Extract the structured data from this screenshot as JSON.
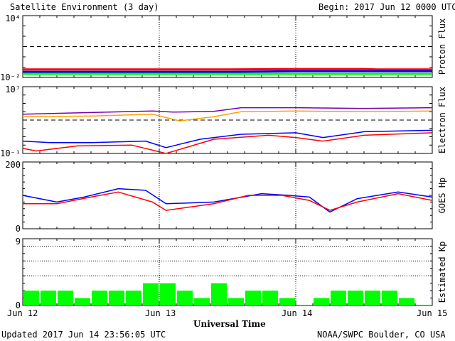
{
  "header": {
    "title": "Satellite Environment (3 day)",
    "begin_label": "Begin:",
    "begin_value": "2017 Jun 12 0000 UTC"
  },
  "footer": {
    "updated": "Updated 2017 Jun 14 23:56:05 UTC",
    "credit": "NOAA/SWPC Boulder, CO USA"
  },
  "colors": {
    "red": "#ff0000",
    "blue": "#0000ff",
    "green": "#00ff00",
    "purple": "#7a00b0",
    "orange": "#ffa000"
  },
  "chart_data": [
    {
      "type": "line",
      "ylabel": "Proton Flux",
      "yscale": "log",
      "ylim": [
        0.01,
        10000
      ],
      "ytick_labels": [
        "10⁴",
        "10⁻²"
      ],
      "threshold": 10,
      "x_range_days": [
        0,
        3
      ],
      "series": [
        {
          "color": "red",
          "x": [
            0,
            0.5,
            1,
            1.5,
            2,
            2.5,
            2.6,
            2.75,
            3
          ],
          "values": [
            0.06,
            0.06,
            0.06,
            0.06,
            0.065,
            0.065,
            0.06,
            0.06,
            0.06
          ]
        },
        {
          "color": "blue",
          "x": [
            0,
            0.5,
            1,
            1.5,
            2,
            2.5,
            2.6,
            2.75,
            3
          ],
          "values": [
            0.035,
            0.035,
            0.035,
            0.035,
            0.04,
            0.04,
            0.04,
            0.04,
            0.04
          ]
        },
        {
          "color": "green",
          "x": [
            0,
            0.5,
            1,
            1.5,
            2,
            2.5,
            2.6,
            2.75,
            3
          ],
          "values": [
            0.022,
            0.022,
            0.022,
            0.022,
            0.022,
            0.022,
            0.022,
            0.022,
            0.022
          ]
        }
      ]
    },
    {
      "type": "line",
      "ylabel": "Electron Flux",
      "yscale": "log",
      "ylim": [
        0.1,
        10000000
      ],
      "ytick_labels": [
        "10⁷",
        "10⁻¹"
      ],
      "threshold": 1000,
      "x_range_days": [
        0,
        3
      ],
      "series": [
        {
          "color": "purple",
          "x": [
            0,
            0.5,
            0.95,
            1.1,
            1.4,
            1.6,
            2.0,
            2.5,
            3
          ],
          "values": [
            5000,
            8000,
            12000,
            9000,
            11000,
            30000,
            30000,
            25000,
            30000
          ]
        },
        {
          "color": "orange",
          "x": [
            0,
            0.5,
            0.95,
            1.15,
            1.4,
            1.6,
            2.0,
            2.5,
            3
          ],
          "values": [
            2500,
            3000,
            5000,
            800,
            2500,
            10000,
            12000,
            10000,
            12000
          ]
        },
        {
          "color": "blue",
          "x": [
            0,
            0.2,
            0.5,
            0.9,
            1.05,
            1.3,
            1.6,
            2.0,
            2.2,
            2.5,
            3
          ],
          "values": [
            3,
            2,
            2,
            3,
            0.5,
            5,
            20,
            30,
            8,
            40,
            60
          ]
        },
        {
          "color": "red",
          "x": [
            0,
            0.1,
            0.4,
            0.8,
            1.05,
            1.4,
            1.8,
            2.0,
            2.2,
            2.5,
            3
          ],
          "values": [
            0.4,
            0.2,
            0.8,
            1,
            0.1,
            5,
            15,
            8,
            3,
            15,
            30
          ]
        }
      ]
    },
    {
      "type": "line",
      "ylabel": "GOES Hp",
      "ylim": [
        0,
        200
      ],
      "ytick_labels": [
        "200",
        "0"
      ],
      "x_range_days": [
        0,
        3
      ],
      "series": [
        {
          "color": "blue",
          "x": [
            0,
            0.25,
            0.45,
            0.7,
            0.9,
            1.05,
            1.4,
            1.75,
            1.95,
            2.1,
            2.25,
            2.45,
            2.75,
            3
          ],
          "values": [
            100,
            80,
            95,
            120,
            115,
            75,
            80,
            105,
            100,
            95,
            50,
            90,
            110,
            95
          ]
        },
        {
          "color": "red",
          "x": [
            0,
            0.25,
            0.5,
            0.7,
            0.95,
            1.05,
            1.4,
            1.65,
            1.9,
            2.1,
            2.25,
            2.45,
            2.75,
            3
          ],
          "values": [
            75,
            75,
            95,
            110,
            80,
            55,
            75,
            100,
            100,
            85,
            55,
            80,
            105,
            85
          ]
        }
      ]
    },
    {
      "type": "bar",
      "ylabel": "Estimated Kp",
      "ylim": [
        0,
        9
      ],
      "ytick_labels": [
        "9",
        "0"
      ],
      "gridlines": [
        4,
        6,
        8
      ],
      "x_range_days": [
        0,
        3
      ],
      "bar_width_days": 0.125,
      "values": [
        2,
        2,
        2,
        1,
        2,
        2,
        2,
        3,
        3,
        2,
        1,
        3,
        1,
        2,
        2,
        1,
        0,
        1,
        2,
        2,
        2,
        2,
        1,
        0
      ]
    }
  ],
  "xaxis": {
    "ticks": [
      "Jun 12",
      "Jun 13",
      "Jun 14",
      "Jun 15"
    ],
    "label": "Universal Time"
  }
}
